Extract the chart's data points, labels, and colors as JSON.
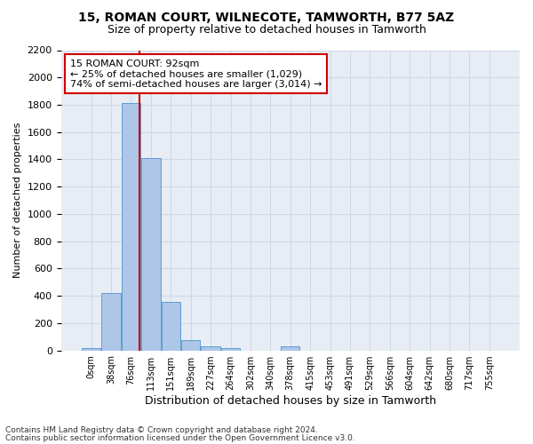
{
  "title1": "15, ROMAN COURT, WILNECOTE, TAMWORTH, B77 5AZ",
  "title2": "Size of property relative to detached houses in Tamworth",
  "xlabel": "Distribution of detached houses by size in Tamworth",
  "ylabel": "Number of detached properties",
  "bin_labels": [
    "0sqm",
    "38sqm",
    "76sqm",
    "113sqm",
    "151sqm",
    "189sqm",
    "227sqm",
    "264sqm",
    "302sqm",
    "340sqm",
    "378sqm",
    "415sqm",
    "453sqm",
    "491sqm",
    "529sqm",
    "566sqm",
    "604sqm",
    "642sqm",
    "680sqm",
    "717sqm",
    "755sqm"
  ],
  "bar_values": [
    15,
    420,
    1810,
    1410,
    355,
    75,
    30,
    20,
    0,
    0,
    30,
    0,
    0,
    0,
    0,
    0,
    0,
    0,
    0,
    0,
    0
  ],
  "bar_color": "#aec6e8",
  "bar_edge_color": "#5a9fd4",
  "property_sqm_bin": 2.42,
  "annotation_text": "15 ROMAN COURT: 92sqm\n← 25% of detached houses are smaller (1,029)\n74% of semi-detached houses are larger (3,014) →",
  "annotation_box_color": "#ffffff",
  "annotation_border_color": "#cc0000",
  "vline_color": "#cc0000",
  "ylim": [
    0,
    2200
  ],
  "yticks": [
    0,
    200,
    400,
    600,
    800,
    1000,
    1200,
    1400,
    1600,
    1800,
    2000,
    2200
  ],
  "grid_color": "#d0d8e8",
  "bg_color": "#e8edf5",
  "footer1": "Contains HM Land Registry data © Crown copyright and database right 2024.",
  "footer2": "Contains public sector information licensed under the Open Government Licence v3.0."
}
